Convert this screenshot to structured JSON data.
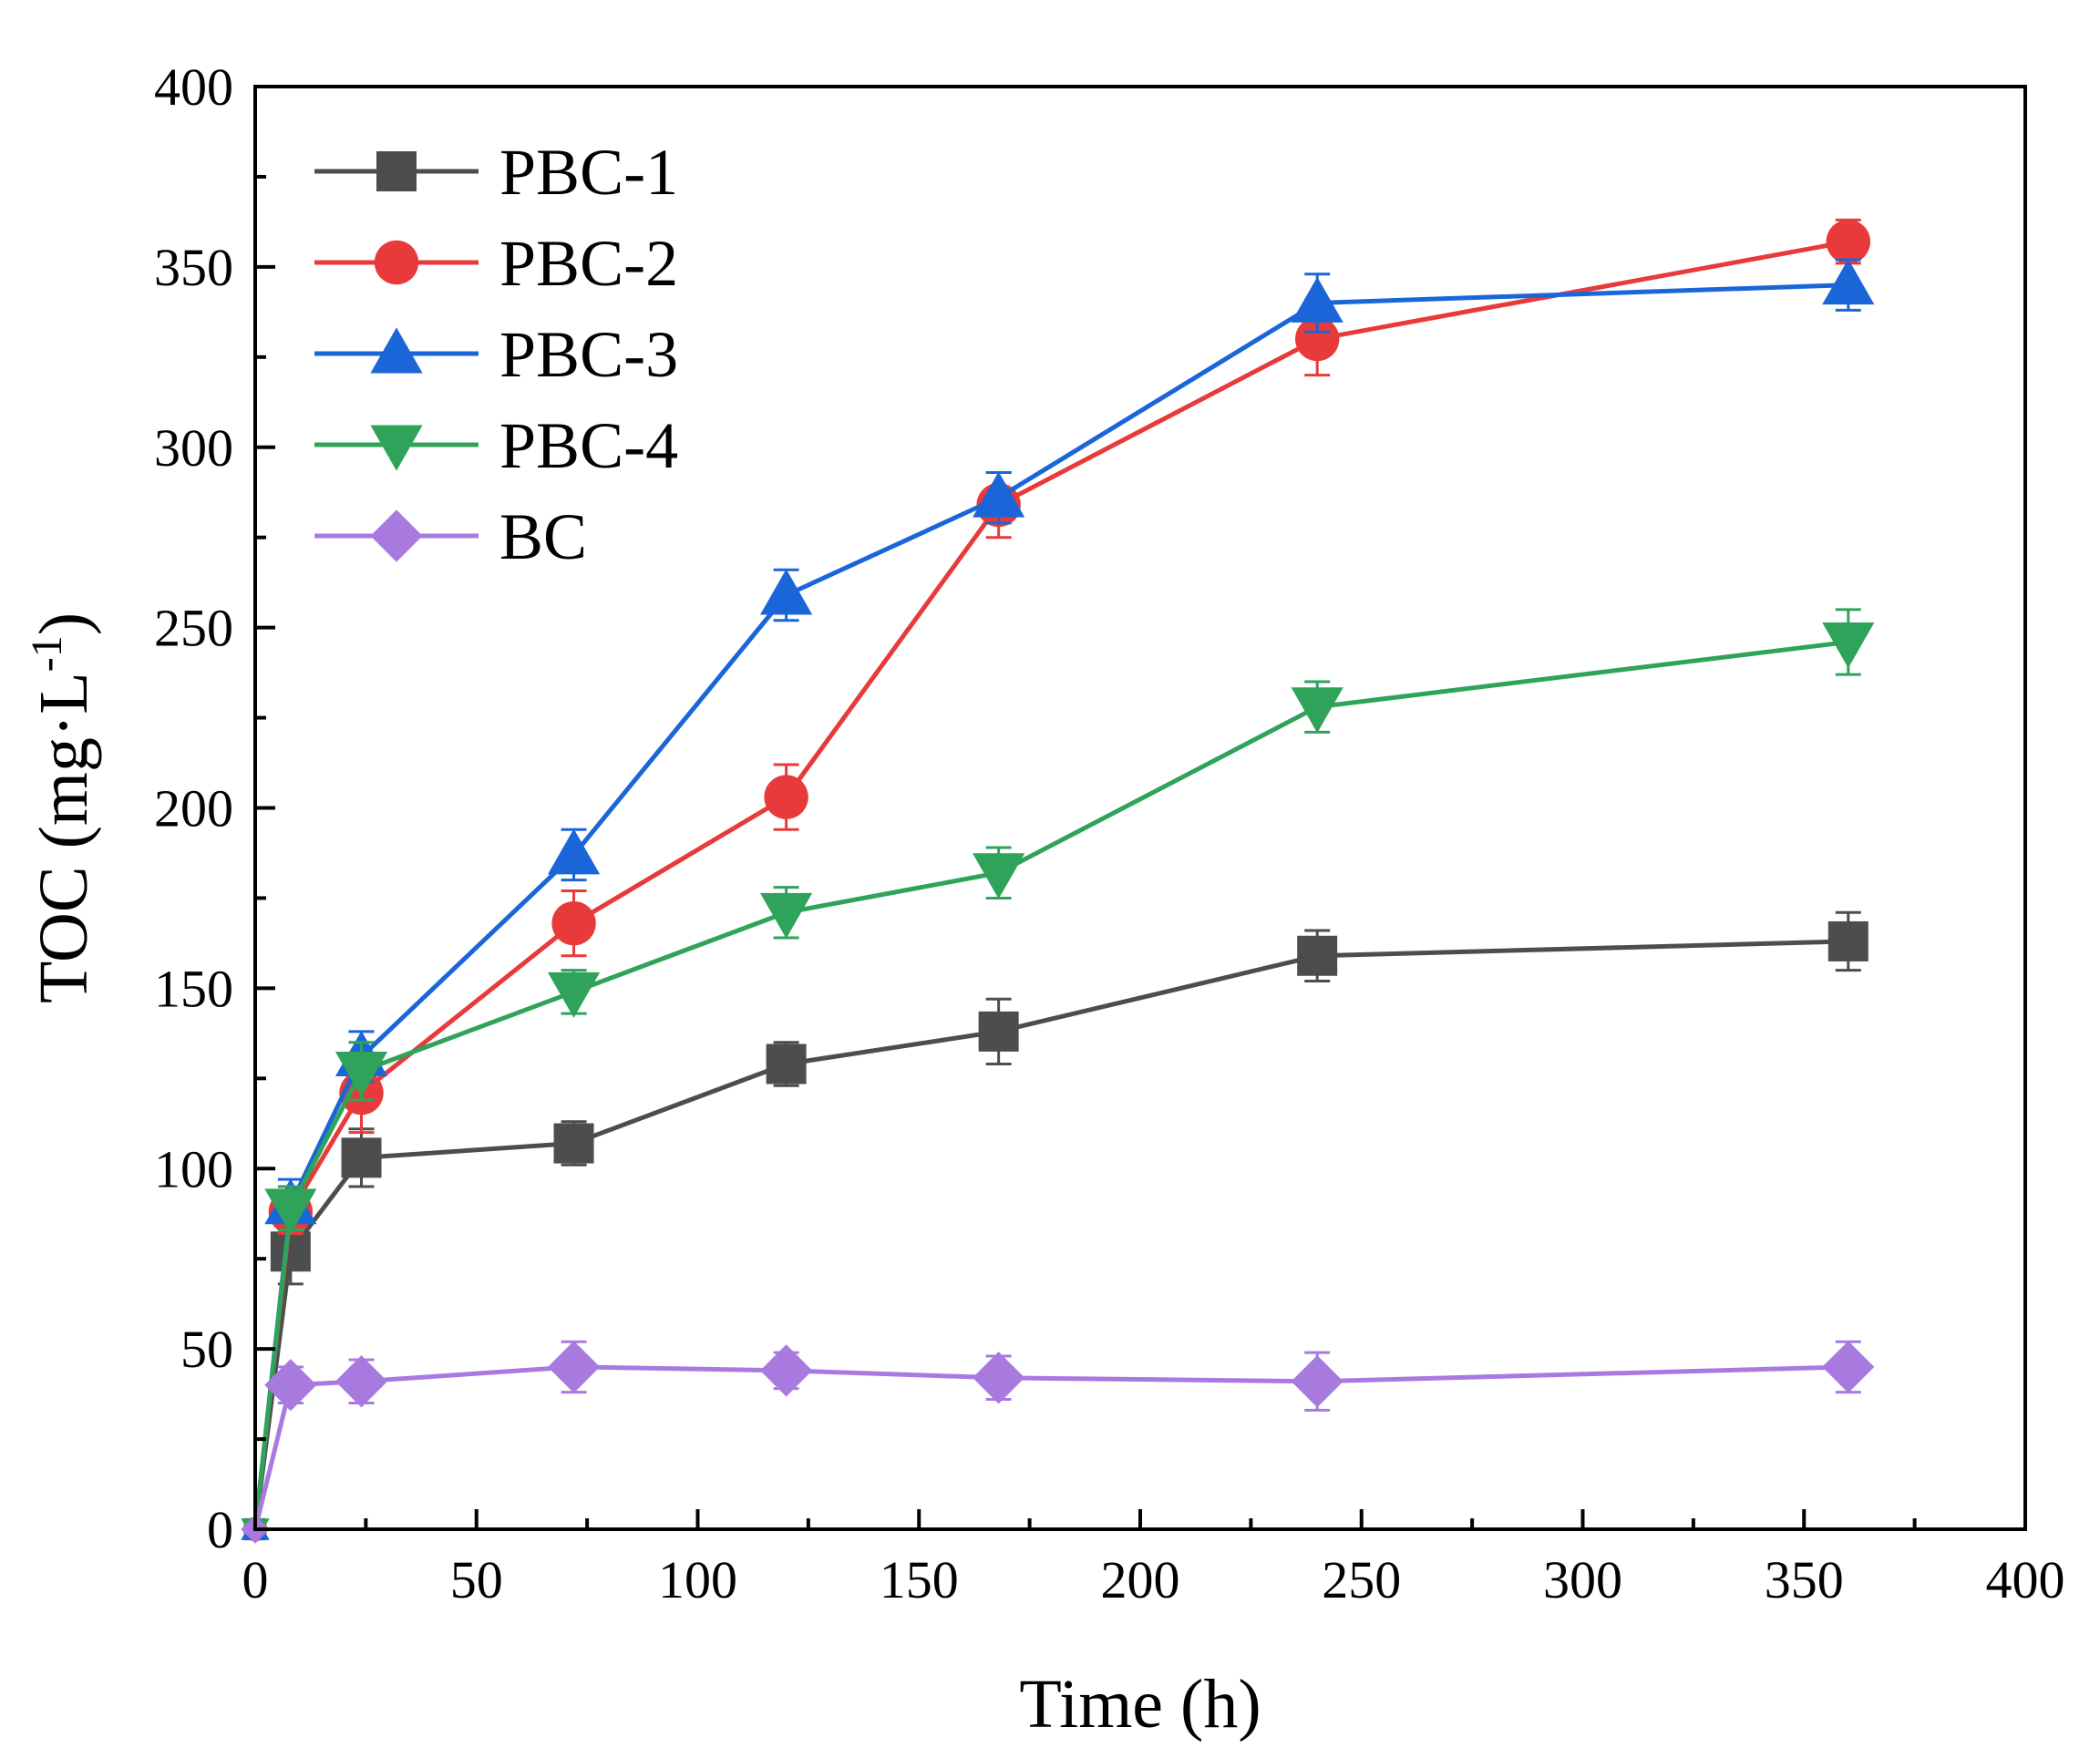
{
  "chart_data": {
    "type": "line",
    "title": "",
    "xlabel": "Time (h)",
    "ylabel_main": "TOC (mg·L",
    "ylabel_sup": "-1",
    "ylabel_close": ")",
    "xlim": [
      0,
      400
    ],
    "ylim": [
      0,
      400
    ],
    "xticks": [
      0,
      50,
      100,
      150,
      200,
      250,
      300,
      350,
      400
    ],
    "yticks": [
      0,
      50,
      100,
      150,
      200,
      250,
      300,
      350,
      400
    ],
    "grid": false,
    "legend_position": "top-left",
    "x": [
      0,
      8,
      24,
      72,
      120,
      168,
      240,
      360
    ],
    "series": [
      {
        "name": "PBC-1",
        "color": "#4d4d4d",
        "marker": "square",
        "values": [
          0,
          77,
          103,
          107,
          129,
          138,
          159,
          163
        ],
        "errors": [
          0,
          9,
          8,
          6,
          6,
          9,
          7,
          8
        ]
      },
      {
        "name": "PBC-2",
        "color": "#e83a3a",
        "marker": "circle",
        "values": [
          0,
          88,
          121,
          168,
          203,
          284,
          330,
          357
        ],
        "errors": [
          0,
          6,
          11,
          9,
          9,
          9,
          10,
          6
        ]
      },
      {
        "name": "PBC-3",
        "color": "#1a66d9",
        "marker": "triangle-up",
        "values": [
          0,
          90,
          131,
          187,
          259,
          286,
          340,
          345
        ],
        "errors": [
          0,
          7,
          7,
          7,
          7,
          7,
          8,
          7
        ]
      },
      {
        "name": "PBC-4",
        "color": "#2fa35a",
        "marker": "triangle-down",
        "values": [
          0,
          89,
          127,
          149,
          171,
          182,
          228,
          246
        ],
        "errors": [
          0,
          6,
          8,
          6,
          7,
          7,
          7,
          9
        ]
      },
      {
        "name": "BC",
        "color": "#a87ae0",
        "marker": "diamond",
        "values": [
          0,
          40,
          41,
          45,
          44,
          42,
          41,
          45
        ],
        "errors": [
          0,
          5,
          6,
          7,
          5,
          6,
          8,
          7
        ]
      }
    ]
  }
}
